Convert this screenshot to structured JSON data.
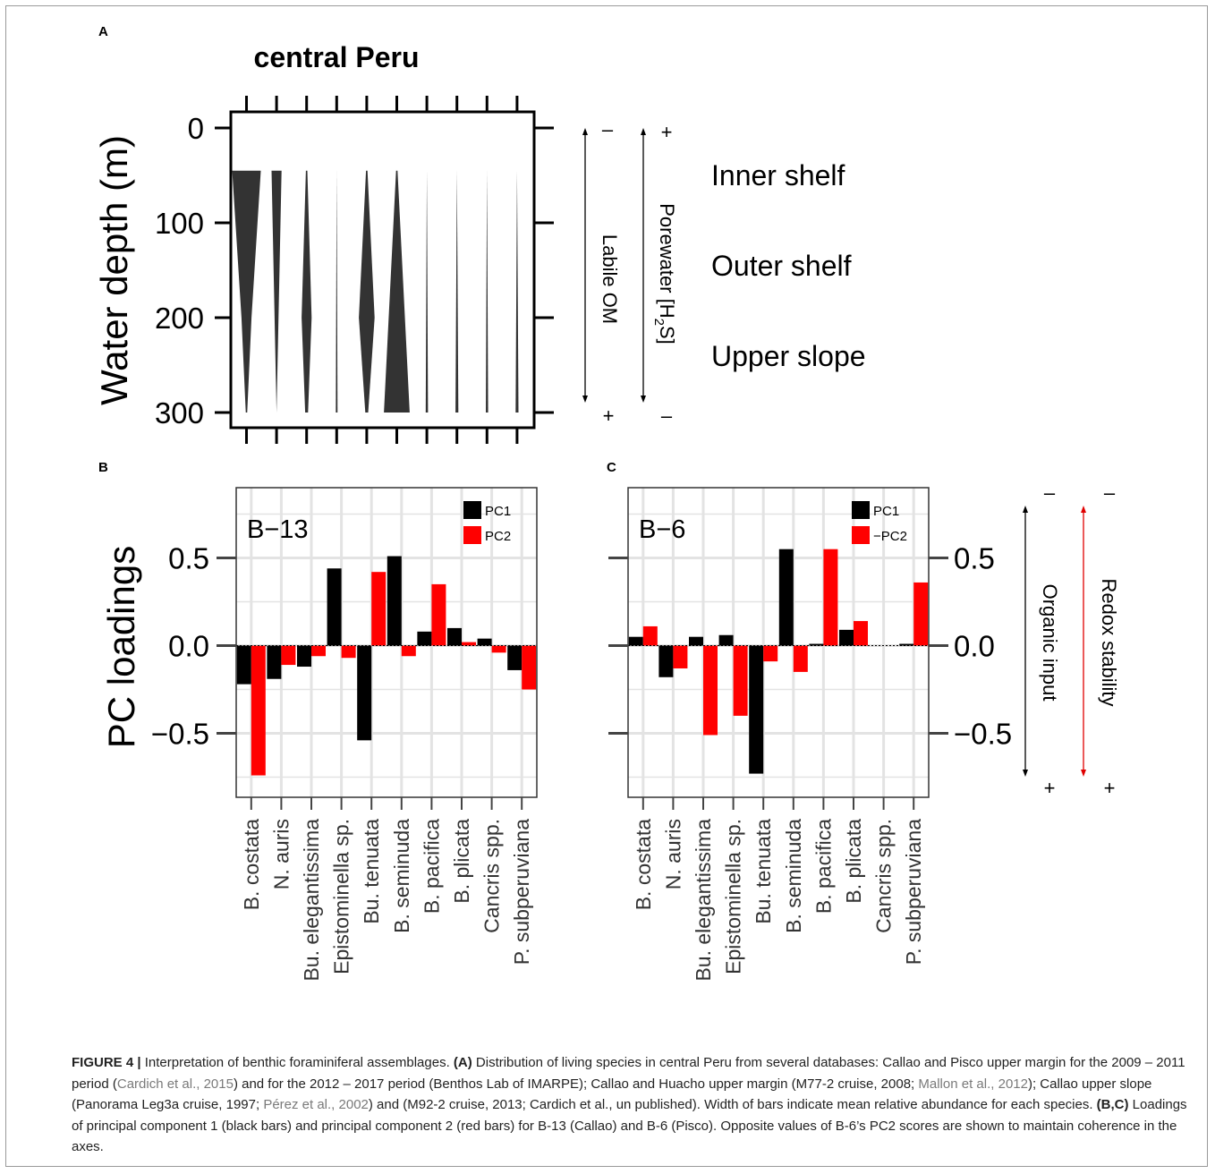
{
  "chart_data": [
    {
      "panel": "A",
      "type": "area",
      "title": "central Peru",
      "ylabel": "Water depth (m)",
      "ylim": [
        300,
        0
      ],
      "yticks": [
        0,
        100,
        200,
        300
      ],
      "y_reversed": true,
      "species_order": [
        "B. costata",
        "N. auris",
        "Bu. elegantissima",
        "Epistominella sp.",
        "Bu. tenuata",
        "B. seminuda",
        "B. pacifica",
        "B. plicata",
        "Cancris spp.",
        "P. subperuviana"
      ],
      "depth_range": [
        45,
        300
      ],
      "relative_width_profiles": [
        {
          "species": "B. costata",
          "profile": [
            [
              45,
              1.0
            ],
            [
              200,
              0.35
            ],
            [
              300,
              0.05
            ]
          ]
        },
        {
          "species": "N. auris",
          "profile": [
            [
              45,
              0.35
            ],
            [
              300,
              0.0
            ]
          ]
        },
        {
          "species": "Bu. elegantissima",
          "profile": [
            [
              45,
              0.05
            ],
            [
              200,
              0.35
            ],
            [
              300,
              0.1
            ]
          ]
        },
        {
          "species": "Epistominella sp.",
          "profile": [
            [
              45,
              0.0
            ],
            [
              300,
              0.06
            ]
          ]
        },
        {
          "species": "Bu. tenuata",
          "profile": [
            [
              45,
              0.05
            ],
            [
              200,
              0.55
            ],
            [
              300,
              0.1
            ]
          ]
        },
        {
          "species": "B. seminuda",
          "profile": [
            [
              45,
              0.05
            ],
            [
              300,
              0.9
            ]
          ]
        },
        {
          "species": "B. pacifica",
          "profile": [
            [
              45,
              0.0
            ],
            [
              300,
              0.08
            ]
          ]
        },
        {
          "species": "B. plicata",
          "profile": [
            [
              45,
              0.0
            ],
            [
              300,
              0.1
            ]
          ]
        },
        {
          "species": "Cancris spp.",
          "profile": [
            [
              45,
              0.0
            ],
            [
              300,
              0.08
            ]
          ]
        },
        {
          "species": "P. subperuviana",
          "profile": [
            [
              45,
              0.0
            ],
            [
              300,
              0.1
            ]
          ]
        }
      ],
      "zones": [
        "Inner shelf",
        "Outer shelf",
        "Upper slope"
      ],
      "gradients": [
        {
          "label": "Labile OM",
          "top": "–",
          "bottom": "+"
        },
        {
          "label": "Porewater [H",
          "sub": "2",
          "label_end": "S]",
          "top": "+",
          "bottom": "–"
        }
      ]
    },
    {
      "panel": "B",
      "type": "bar",
      "station": "B−13",
      "ylabel": "PC loadings",
      "ylim": [
        -0.85,
        0.85
      ],
      "yticks": [
        0.5,
        0.0,
        -0.5
      ],
      "ytick_labels": [
        "0.5",
        "0.0",
        "−0.5"
      ],
      "categories": [
        "B. costata",
        "N. auris",
        "Bu. elegantissima",
        "Epistominella sp.",
        "Bu. tenuata",
        "B. seminuda",
        "B. pacifica",
        "B. plicata",
        "Cancris spp.",
        "P. subperuviana"
      ],
      "series": [
        {
          "name": "PC1",
          "color": "#000000",
          "values": [
            -0.22,
            -0.19,
            -0.12,
            0.44,
            -0.54,
            0.51,
            0.08,
            0.1,
            0.04,
            -0.14
          ]
        },
        {
          "name": "PC2",
          "color": "#ff0000",
          "values": [
            -0.74,
            -0.11,
            -0.06,
            -0.07,
            0.42,
            -0.06,
            0.35,
            0.02,
            -0.04,
            -0.25
          ]
        }
      ],
      "grid": true,
      "legend": "top-right"
    },
    {
      "panel": "C",
      "type": "bar",
      "station": "B−6",
      "ylim": [
        -0.85,
        0.85
      ],
      "yticks": [
        0.5,
        0.0,
        -0.5
      ],
      "ytick_labels": [
        "0.5",
        "0.0",
        "−0.5"
      ],
      "categories": [
        "B. costata",
        "N. auris",
        "Bu. elegantissima",
        "Epistominella sp.",
        "Bu. tenuata",
        "B. seminuda",
        "B. pacifica",
        "B. plicata",
        "Cancris spp.",
        "P. subperuviana"
      ],
      "series": [
        {
          "name": "PC1",
          "color": "#000000",
          "values": [
            0.05,
            -0.18,
            0.05,
            0.06,
            -0.73,
            0.55,
            0.01,
            0.09,
            0.0,
            0.01
          ]
        },
        {
          "name": "−PC2",
          "color": "#ff0000",
          "values": [
            0.11,
            -0.13,
            -0.51,
            -0.4,
            -0.09,
            -0.15,
            0.55,
            0.14,
            0.0,
            0.36
          ]
        }
      ],
      "grid": true,
      "legend": "top-right",
      "gradients": [
        {
          "label": "Organic input",
          "top": "–",
          "bottom": "+",
          "color": "#000000"
        },
        {
          "label": "Redox stability",
          "top": "–",
          "bottom": "+",
          "color": "#e00000"
        }
      ]
    }
  ],
  "caption": {
    "figure_label": "FIGURE 4 |",
    "segments": [
      {
        "text": " Interpretation of benthic foraminiferal assemblages. ",
        "style": "normal"
      },
      {
        "text": "(A)",
        "style": "bold"
      },
      {
        "text": " Distribution of living species in central Peru from several databases: Callao and Pisco upper margin for the 2009 – 2011 period (",
        "style": "normal"
      },
      {
        "text": "Cardich et al., 2015",
        "style": "ref"
      },
      {
        "text": ") and for the 2012 – 2017 period (Benthos Lab of IMARPE); Callao and Huacho upper margin (M77-2 cruise, 2008; ",
        "style": "normal"
      },
      {
        "text": "Mallon et al., 2012",
        "style": "ref"
      },
      {
        "text": "); Callao upper slope (Panorama Leg3a cruise, 1997; ",
        "style": "normal"
      },
      {
        "text": "Pérez et al., 2002",
        "style": "ref"
      },
      {
        "text": ") and (M92-2 cruise, 2013; Cardich et al., un published). Width of bars indicate mean relative abundance for each species. ",
        "style": "normal"
      },
      {
        "text": "(B,C)",
        "style": "bold"
      },
      {
        "text": " Loadings of principal component 1 (black bars) and principal component 2 (red bars) for B-13 (Callao) and B-6 (Pisco). Opposite values of B-6’s PC2 scores are shown to maintain coherence in the axes.",
        "style": "normal"
      }
    ]
  }
}
